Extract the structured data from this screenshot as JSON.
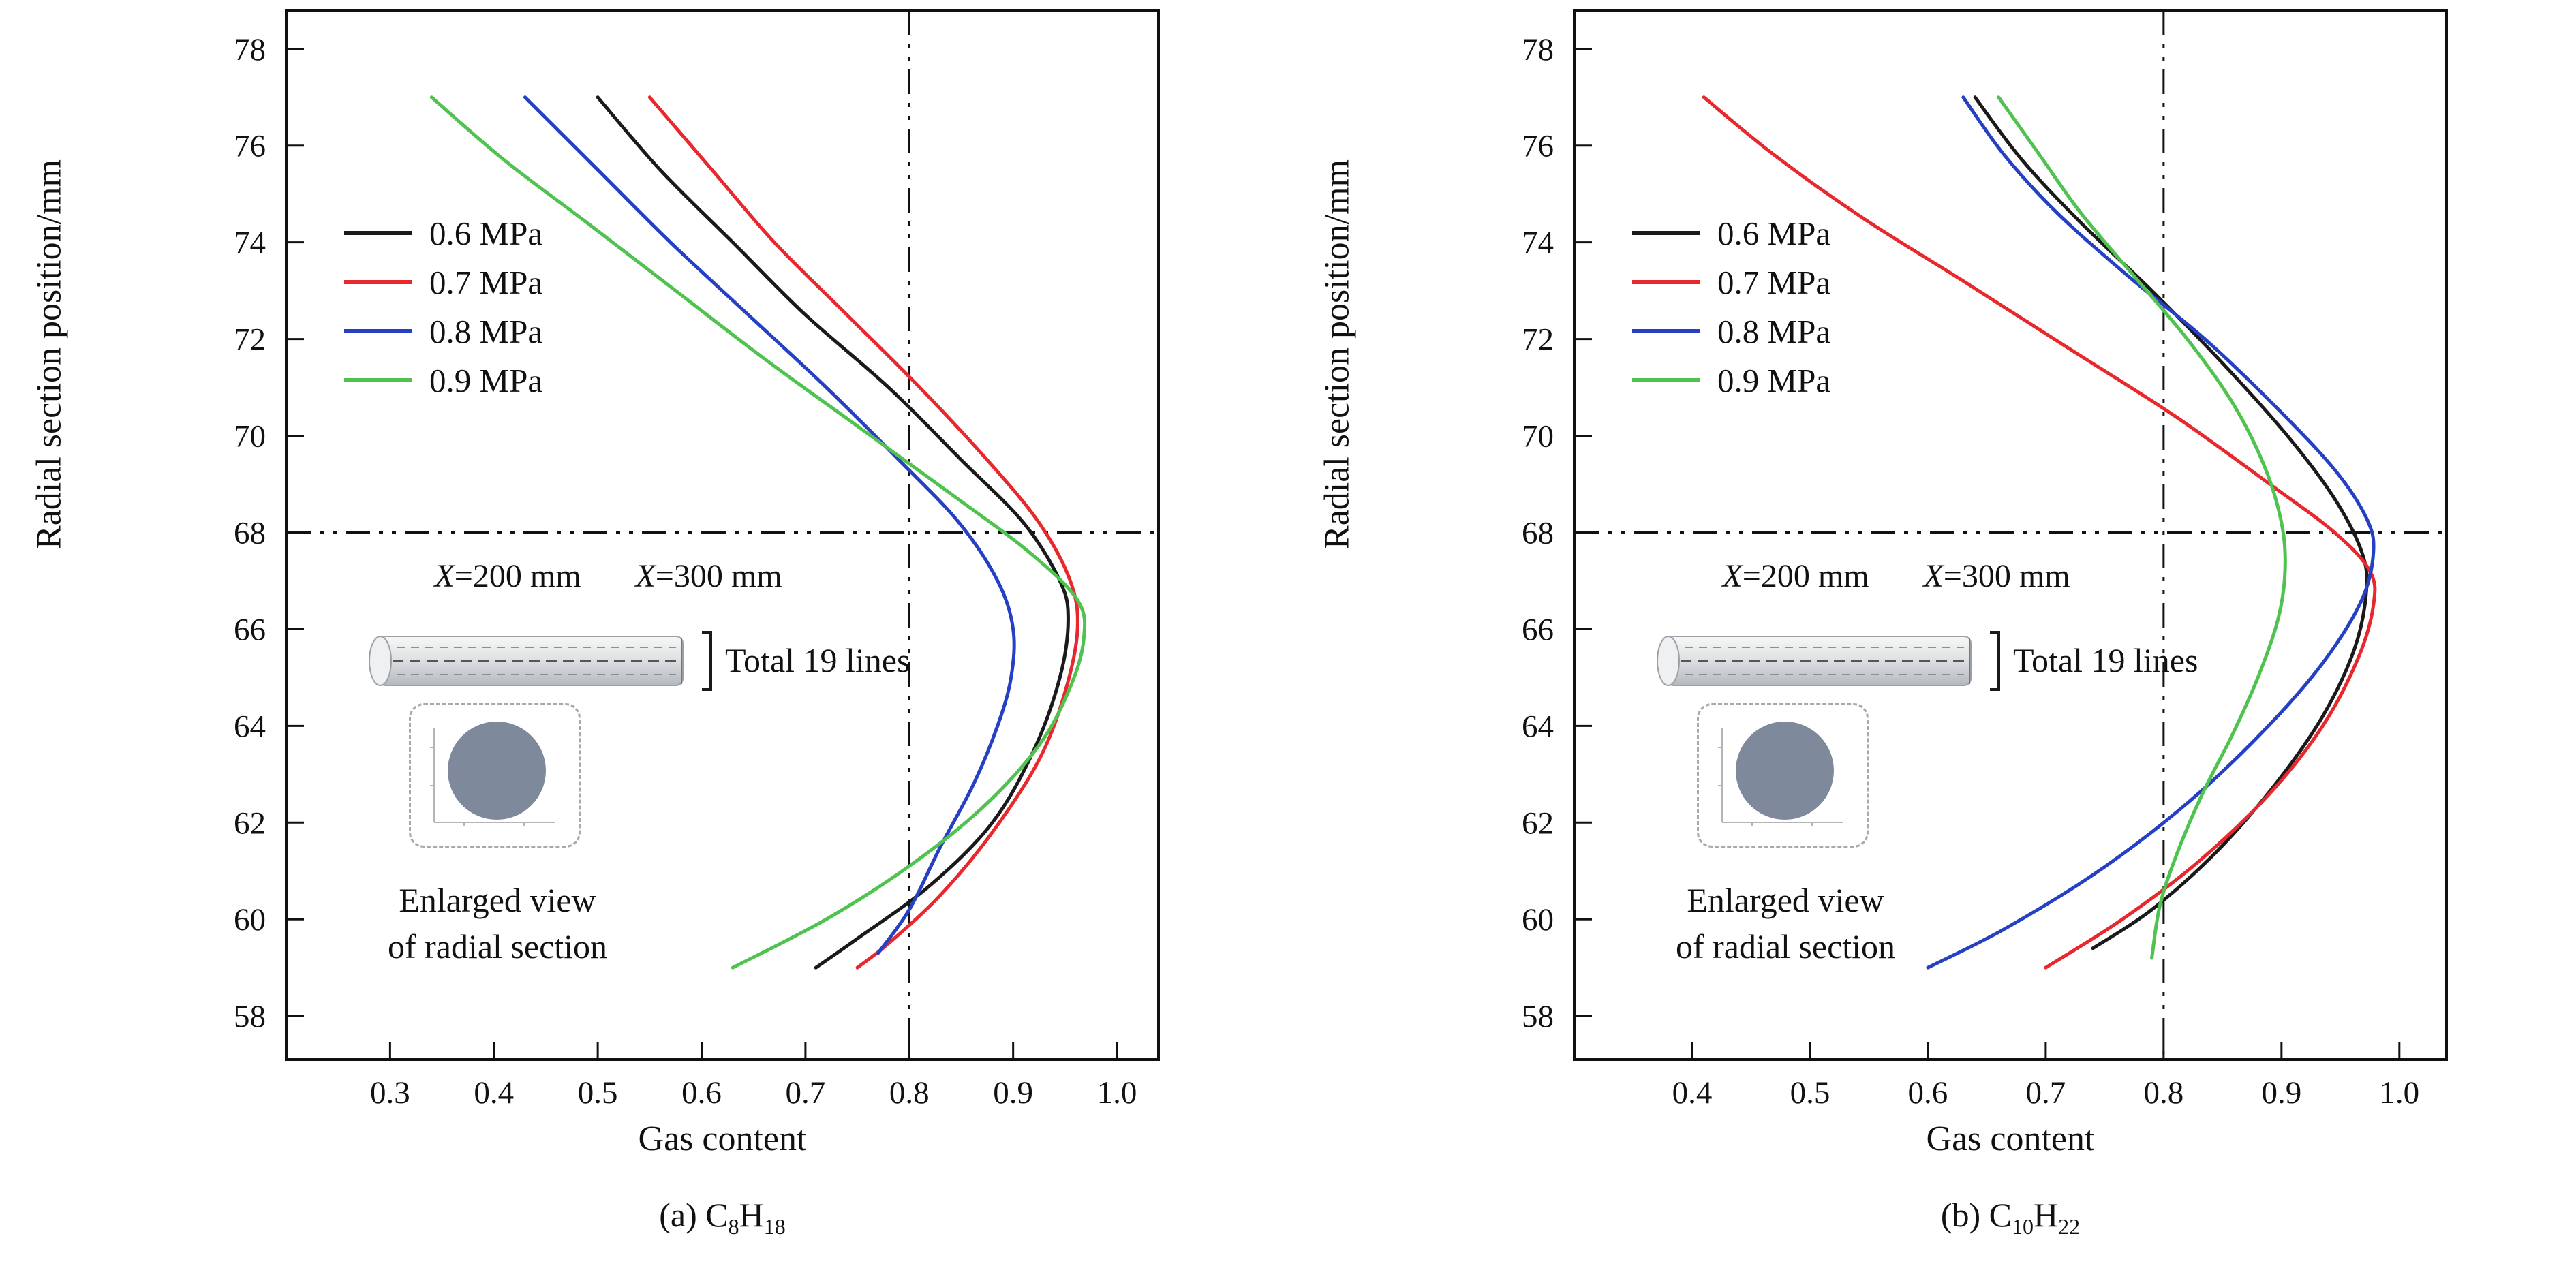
{
  "figure": {
    "panels": [
      {
        "ylabel": "Radial section position/mm",
        "xlabel": "Gas content",
        "caption": {
          "prefix": "(a) C",
          "sub1": "8",
          "mid": "H",
          "sub2": "18"
        },
        "inset": {
          "x200": {
            "var": "X",
            "rest": "=200 mm"
          },
          "x300": {
            "var": "X",
            "rest": "=300 mm"
          },
          "total": "Total 19 lines",
          "enlarged1": "Enlarged view",
          "enlarged2": "of radial section"
        }
      },
      {
        "ylabel": "Radial section position/mm",
        "xlabel": "Gas content",
        "caption": {
          "prefix": "(b) C",
          "sub1": "10",
          "mid": "H",
          "sub2": "22"
        },
        "inset": {
          "x200": {
            "var": "X",
            "rest": "=200 mm"
          },
          "x300": {
            "var": "X",
            "rest": "=300 mm"
          },
          "total": "Total 19 lines",
          "enlarged1": "Enlarged view",
          "enlarged2": "of radial section"
        }
      }
    ]
  },
  "chart_data": [
    {
      "type": "line",
      "title": "(a) C8H18",
      "xlabel": "Gas content",
      "ylabel": "Radial section position/mm",
      "xlim": [
        0.2,
        1.04
      ],
      "ylim": [
        57.1,
        78.8
      ],
      "xticks": [
        0.3,
        0.4,
        0.5,
        0.6,
        0.7,
        0.8,
        0.9,
        1.0
      ],
      "yticks": [
        58,
        60,
        62,
        64,
        66,
        68,
        70,
        72,
        74,
        76,
        78
      ],
      "grid": false,
      "legend_position": "upper-left-inside",
      "reference_lines": {
        "x": 0.8,
        "y": 68
      },
      "annotations": [
        "X=200 mm",
        "X=300 mm",
        "Total 19 lines",
        "Enlarged view of radial section"
      ],
      "series": [
        {
          "name": "0.6 MPa",
          "color": "#1a1a1a",
          "points": [
            [
              0.5,
              77
            ],
            [
              0.56,
              75.5
            ],
            [
              0.63,
              74
            ],
            [
              0.7,
              72.5
            ],
            [
              0.78,
              71
            ],
            [
              0.85,
              69.5
            ],
            [
              0.91,
              68.2
            ],
            [
              0.945,
              67
            ],
            [
              0.953,
              66.2
            ],
            [
              0.945,
              65
            ],
            [
              0.92,
              63.5
            ],
            [
              0.88,
              62
            ],
            [
              0.82,
              60.7
            ],
            [
              0.75,
              59.6
            ],
            [
              0.71,
              59
            ]
          ]
        },
        {
          "name": "0.7 MPa",
          "color": "#e8282c",
          "points": [
            [
              0.55,
              77
            ],
            [
              0.61,
              75.5
            ],
            [
              0.67,
              74
            ],
            [
              0.74,
              72.5
            ],
            [
              0.81,
              71
            ],
            [
              0.875,
              69.5
            ],
            [
              0.925,
              68.2
            ],
            [
              0.955,
              67
            ],
            [
              0.962,
              66
            ],
            [
              0.95,
              64.7
            ],
            [
              0.925,
              63.3
            ],
            [
              0.88,
              61.8
            ],
            [
              0.83,
              60.5
            ],
            [
              0.78,
              59.5
            ],
            [
              0.75,
              59
            ]
          ]
        },
        {
          "name": "0.8 MPa",
          "color": "#2540c4",
          "points": [
            [
              0.43,
              77
            ],
            [
              0.5,
              75.5
            ],
            [
              0.57,
              74
            ],
            [
              0.645,
              72.5
            ],
            [
              0.72,
              71
            ],
            [
              0.79,
              69.5
            ],
            [
              0.848,
              68.2
            ],
            [
              0.885,
              67
            ],
            [
              0.9,
              66
            ],
            [
              0.898,
              65
            ],
            [
              0.885,
              64
            ],
            [
              0.862,
              62.8
            ],
            [
              0.83,
              61.5
            ],
            [
              0.8,
              60.2
            ],
            [
              0.77,
              59.3
            ]
          ]
        },
        {
          "name": "0.9 MPa",
          "color": "#4fc24f",
          "points": [
            [
              0.34,
              77
            ],
            [
              0.41,
              75.7
            ],
            [
              0.49,
              74.4
            ],
            [
              0.575,
              73
            ],
            [
              0.66,
              71.6
            ],
            [
              0.75,
              70.2
            ],
            [
              0.84,
              68.8
            ],
            [
              0.915,
              67.6
            ],
            [
              0.962,
              66.6
            ],
            [
              0.968,
              65.8
            ],
            [
              0.955,
              64.8
            ],
            [
              0.925,
              63.6
            ],
            [
              0.87,
              62.3
            ],
            [
              0.8,
              61.1
            ],
            [
              0.72,
              60
            ],
            [
              0.63,
              59
            ]
          ]
        }
      ]
    },
    {
      "type": "line",
      "title": "(b) C10H22",
      "xlabel": "Gas content",
      "ylabel": "Radial section position/mm",
      "xlim": [
        0.3,
        1.04
      ],
      "ylim": [
        57.1,
        78.8
      ],
      "xticks": [
        0.4,
        0.5,
        0.6,
        0.7,
        0.8,
        0.9,
        1.0
      ],
      "yticks": [
        58,
        60,
        62,
        64,
        66,
        68,
        70,
        72,
        74,
        76,
        78
      ],
      "grid": false,
      "legend_position": "upper-left-inside",
      "reference_lines": {
        "x": 0.8,
        "y": 68
      },
      "annotations": [
        "X=200 mm",
        "X=300 mm",
        "Total 19 lines",
        "Enlarged view of radial section"
      ],
      "series": [
        {
          "name": "0.6 MPa",
          "color": "#1a1a1a",
          "points": [
            [
              0.64,
              77
            ],
            [
              0.68,
              75.7
            ],
            [
              0.73,
              74.4
            ],
            [
              0.79,
              73
            ],
            [
              0.85,
              71.5
            ],
            [
              0.905,
              70
            ],
            [
              0.945,
              68.7
            ],
            [
              0.968,
              67.6
            ],
            [
              0.972,
              66.8
            ],
            [
              0.962,
              65.6
            ],
            [
              0.935,
              64.2
            ],
            [
              0.895,
              62.8
            ],
            [
              0.845,
              61.4
            ],
            [
              0.79,
              60.2
            ],
            [
              0.74,
              59.4
            ]
          ]
        },
        {
          "name": "0.7 MPa",
          "color": "#e8282c",
          "points": [
            [
              0.41,
              77
            ],
            [
              0.47,
              75.8
            ],
            [
              0.545,
              74.5
            ],
            [
              0.63,
              73.2
            ],
            [
              0.72,
              71.8
            ],
            [
              0.81,
              70.4
            ],
            [
              0.89,
              69
            ],
            [
              0.945,
              68
            ],
            [
              0.975,
              67.2
            ],
            [
              0.978,
              66.5
            ],
            [
              0.965,
              65.4
            ],
            [
              0.935,
              64
            ],
            [
              0.89,
              62.6
            ],
            [
              0.83,
              61.2
            ],
            [
              0.765,
              60
            ],
            [
              0.7,
              59
            ]
          ]
        },
        {
          "name": "0.8 MPa",
          "color": "#2540c4",
          "points": [
            [
              0.63,
              77
            ],
            [
              0.665,
              75.8
            ],
            [
              0.71,
              74.6
            ],
            [
              0.77,
              73.3
            ],
            [
              0.835,
              72
            ],
            [
              0.895,
              70.6
            ],
            [
              0.945,
              69.3
            ],
            [
              0.972,
              68.3
            ],
            [
              0.978,
              67.6
            ],
            [
              0.968,
              66.6
            ],
            [
              0.935,
              65.3
            ],
            [
              0.885,
              63.9
            ],
            [
              0.82,
              62.4
            ],
            [
              0.745,
              61
            ],
            [
              0.665,
              59.8
            ],
            [
              0.6,
              59
            ]
          ]
        },
        {
          "name": "0.9 MPa",
          "color": "#4fc24f",
          "points": [
            [
              0.66,
              77
            ],
            [
              0.695,
              75.8
            ],
            [
              0.73,
              74.6
            ],
            [
              0.775,
              73.3
            ],
            [
              0.82,
              72
            ],
            [
              0.858,
              70.7
            ],
            [
              0.885,
              69.4
            ],
            [
              0.9,
              68.2
            ],
            [
              0.903,
              67.2
            ],
            [
              0.897,
              66.2
            ],
            [
              0.88,
              65
            ],
            [
              0.858,
              63.8
            ],
            [
              0.833,
              62.6
            ],
            [
              0.812,
              61.4
            ],
            [
              0.797,
              60.3
            ],
            [
              0.79,
              59.2
            ]
          ]
        }
      ]
    }
  ]
}
